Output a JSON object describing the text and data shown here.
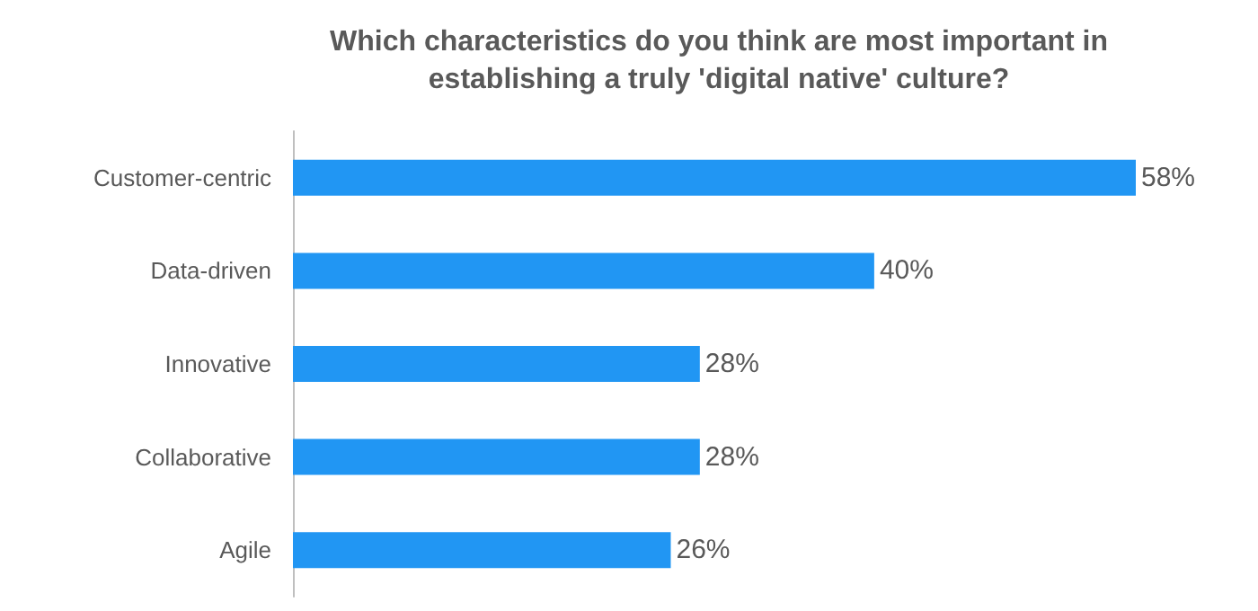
{
  "chart_data": {
    "type": "bar",
    "orientation": "horizontal",
    "title": "Which characteristics do you think are most important in\nestablishing a truly 'digital native' culture?",
    "categories": [
      "Customer-centric",
      "Data-driven",
      "Innovative",
      "Collaborative",
      "Agile"
    ],
    "values": [
      58,
      40,
      28,
      28,
      26
    ],
    "value_labels": [
      "58%",
      "40%",
      "28%",
      "28%",
      "26%"
    ],
    "color": "#2196f3"
  }
}
